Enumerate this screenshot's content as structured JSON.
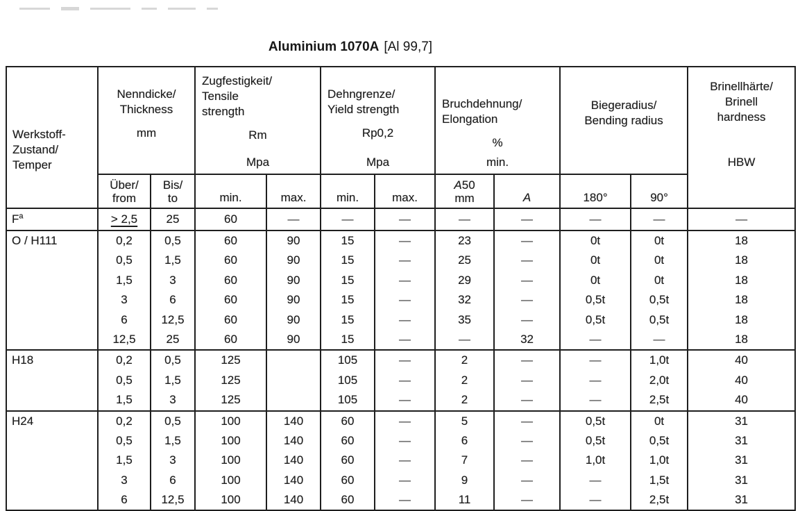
{
  "title": {
    "name": "Aluminium 1070A",
    "spec": "[Al 99,7]"
  },
  "table": {
    "headers": {
      "werkstoff": {
        "lines": [
          "Werkstoff-",
          "Zustand/",
          "Temper"
        ]
      },
      "nenndicke": {
        "lines": [
          "Nenndicke/",
          "Thickness"
        ],
        "unit": "mm",
        "sub_from": {
          "l1": "Über/",
          "l2": "from"
        },
        "sub_to": {
          "l1": "Bis/",
          "l2": "to"
        }
      },
      "zugfestigkeit": {
        "lines": [
          "Zugfestigkeit/",
          "Tensile",
          "strength"
        ],
        "symbol": "Rm",
        "unit": "Mpa",
        "sub_min": "min.",
        "sub_max": "max."
      },
      "dehngrenze": {
        "lines": [
          "Dehngrenze/",
          "Yield strength"
        ],
        "symbol": "Rp0,2",
        "unit": "Mpa",
        "sub_min": "min.",
        "sub_max": "max."
      },
      "bruchdehnung": {
        "lines": [
          "Bruchdehnung/",
          "Elongation"
        ],
        "symbol": "%",
        "unit": "min.",
        "sub_a50": {
          "sym": "A",
          "num": "50",
          "l2": "mm"
        },
        "sub_a": "A"
      },
      "biegeradius": {
        "lines": [
          "Biegeradius/",
          "Bending radius"
        ],
        "sub_180": "180°",
        "sub_90": "90°"
      },
      "brinell": {
        "lines": [
          "Brinellhärte/",
          "Brinell",
          "hardness"
        ],
        "unit": "HBW"
      }
    },
    "groups": [
      {
        "temper": "F",
        "sup": "a",
        "underline_from": true,
        "rows": [
          [
            "> 2,5",
            "25",
            "60",
            "—",
            "—",
            "—",
            "—",
            "—",
            "—",
            "—",
            "—"
          ]
        ]
      },
      {
        "temper": "O / H111",
        "rows": [
          [
            "0,2",
            "0,5",
            "60",
            "90",
            "15",
            "—",
            "23",
            "—",
            "0t",
            "0t",
            "18"
          ],
          [
            "0,5",
            "1,5",
            "60",
            "90",
            "15",
            "—",
            "25",
            "—",
            "0t",
            "0t",
            "18"
          ],
          [
            "1,5",
            "3",
            "60",
            "90",
            "15",
            "—",
            "29",
            "—",
            "0t",
            "0t",
            "18"
          ],
          [
            "3",
            "6",
            "60",
            "90",
            "15",
            "—",
            "32",
            "—",
            "0,5t",
            "0,5t",
            "18"
          ],
          [
            "6",
            "12,5",
            "60",
            "90",
            "15",
            "—",
            "35",
            "—",
            "0,5t",
            "0,5t",
            "18"
          ],
          [
            "12,5",
            "25",
            "60",
            "90",
            "15",
            "—",
            "—",
            "32",
            "—",
            "—",
            "18"
          ]
        ]
      },
      {
        "temper": "H18",
        "rows": [
          [
            "0,2",
            "0,5",
            "125",
            "",
            "105",
            "—",
            "2",
            "—",
            "—",
            "1,0t",
            "40"
          ],
          [
            "0,5",
            "1,5",
            "125",
            "",
            "105",
            "—",
            "2",
            "—",
            "—",
            "2,0t",
            "40"
          ],
          [
            "1,5",
            "3",
            "125",
            "",
            "105",
            "—",
            "2",
            "—",
            "—",
            "2,5t",
            "40"
          ]
        ]
      },
      {
        "temper": "H24",
        "rows": [
          [
            "0,2",
            "0,5",
            "100",
            "140",
            "60",
            "—",
            "5",
            "—",
            "0,5t",
            "0t",
            "31"
          ],
          [
            "0,5",
            "1,5",
            "100",
            "140",
            "60",
            "—",
            "6",
            "—",
            "0,5t",
            "0,5t",
            "31"
          ],
          [
            "1,5",
            "3",
            "100",
            "140",
            "60",
            "—",
            "7",
            "—",
            "1,0t",
            "1,0t",
            "31"
          ],
          [
            "3",
            "6",
            "100",
            "140",
            "60",
            "—",
            "9",
            "—",
            "—",
            "1,5t",
            "31"
          ],
          [
            "6",
            "12,5",
            "100",
            "140",
            "60",
            "—",
            "11",
            "—",
            "—",
            "2,5t",
            "31"
          ]
        ]
      }
    ]
  }
}
